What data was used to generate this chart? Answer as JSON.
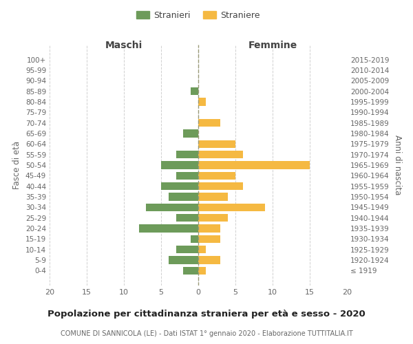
{
  "age_groups": [
    "100+",
    "95-99",
    "90-94",
    "85-89",
    "80-84",
    "75-79",
    "70-74",
    "65-69",
    "60-64",
    "55-59",
    "50-54",
    "45-49",
    "40-44",
    "35-39",
    "30-34",
    "25-29",
    "20-24",
    "15-19",
    "10-14",
    "5-9",
    "0-4"
  ],
  "birth_years": [
    "≤ 1919",
    "1920-1924",
    "1925-1929",
    "1930-1934",
    "1935-1939",
    "1940-1944",
    "1945-1949",
    "1950-1954",
    "1955-1959",
    "1960-1964",
    "1965-1969",
    "1970-1974",
    "1975-1979",
    "1980-1984",
    "1985-1989",
    "1990-1994",
    "1995-1999",
    "2000-2004",
    "2005-2009",
    "2010-2014",
    "2015-2019"
  ],
  "maschi": [
    0,
    0,
    0,
    1,
    0,
    0,
    0,
    2,
    0,
    3,
    5,
    3,
    5,
    4,
    7,
    3,
    8,
    1,
    3,
    4,
    2
  ],
  "femmine": [
    0,
    0,
    0,
    0,
    1,
    0,
    3,
    0,
    5,
    6,
    15,
    5,
    6,
    4,
    9,
    4,
    3,
    3,
    1,
    3,
    1
  ],
  "color_maschi": "#6d9b5a",
  "color_femmine": "#f5b942",
  "title": "Popolazione per cittadinanza straniera per età e sesso - 2020",
  "subtitle": "COMUNE DI SANNICOLA (LE) - Dati ISTAT 1° gennaio 2020 - Elaborazione TUTTITALIA.IT",
  "xlabel_left": "Maschi",
  "xlabel_right": "Femmine",
  "ylabel_left": "Fasce di età",
  "ylabel_right": "Anni di nascita",
  "legend_stranieri": "Stranieri",
  "legend_straniere": "Straniere",
  "xlim": 20,
  "background_color": "#ffffff",
  "grid_color": "#d0d0d0"
}
